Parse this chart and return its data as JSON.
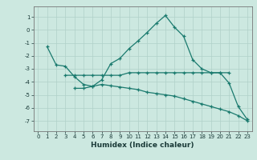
{
  "line1_x": [
    1,
    2,
    3,
    4,
    5,
    6,
    7,
    8,
    9,
    10,
    11,
    12,
    13,
    14,
    15,
    16,
    17,
    18,
    19,
    20,
    21,
    22,
    23
  ],
  "line1_y": [
    -1.3,
    -2.7,
    -2.8,
    -3.6,
    -4.2,
    -4.35,
    -3.85,
    -2.6,
    -2.2,
    -1.45,
    -0.85,
    -0.2,
    0.5,
    1.1,
    0.2,
    -0.5,
    -2.3,
    -3.0,
    -3.3,
    -3.3,
    -4.1,
    -5.9,
    -6.9
  ],
  "line2_x": [
    3,
    4,
    5,
    6,
    7,
    8,
    9,
    10,
    11,
    12,
    13,
    14,
    15,
    16,
    17,
    18,
    19,
    20,
    21
  ],
  "line2_y": [
    -3.5,
    -3.5,
    -3.5,
    -3.5,
    -3.5,
    -3.5,
    -3.5,
    -3.3,
    -3.3,
    -3.3,
    -3.3,
    -3.3,
    -3.3,
    -3.3,
    -3.3,
    -3.3,
    -3.3,
    -3.3,
    -3.3
  ],
  "line3_x": [
    4,
    5,
    6,
    7,
    8,
    9,
    10,
    11,
    12,
    13,
    14,
    15,
    16,
    17,
    18,
    19,
    20,
    21,
    22,
    23
  ],
  "line3_y": [
    -4.5,
    -4.5,
    -4.35,
    -4.2,
    -4.3,
    -4.4,
    -4.5,
    -4.6,
    -4.8,
    -4.9,
    -5.0,
    -5.1,
    -5.3,
    -5.5,
    -5.7,
    -5.9,
    -6.1,
    -6.3,
    -6.6,
    -7.0
  ],
  "line_color": "#1a7a6e",
  "bg_color": "#cce8e0",
  "grid_color": "#b0d0c8",
  "xlabel": "Humidex (Indice chaleur)",
  "xlim": [
    -0.5,
    23.5
  ],
  "ylim": [
    -7.8,
    1.8
  ],
  "yticks": [
    1,
    0,
    -1,
    -2,
    -3,
    -4,
    -5,
    -6,
    -7
  ],
  "xticks": [
    0,
    1,
    2,
    3,
    4,
    5,
    6,
    7,
    8,
    9,
    10,
    11,
    12,
    13,
    14,
    15,
    16,
    17,
    18,
    19,
    20,
    21,
    22,
    23
  ],
  "marker": "+",
  "markersize": 3.5,
  "linewidth": 0.9,
  "tick_fontsize": 5.0,
  "xlabel_fontsize": 6.5
}
